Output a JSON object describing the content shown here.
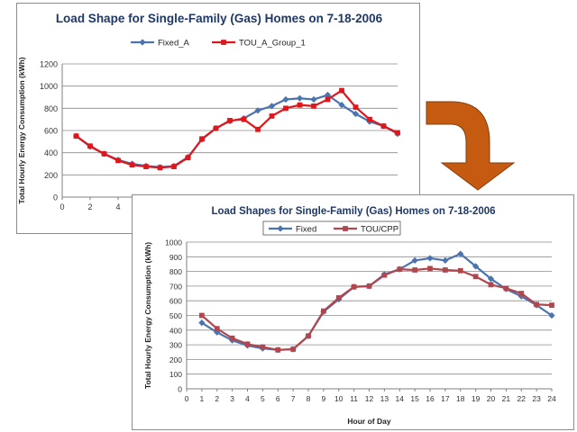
{
  "chart_data": [
    {
      "type": "line",
      "title": "Load Shape for Single-Family (Gas) Homes on 7-18-2006",
      "xlabel": "",
      "ylabel": "Total Hourly Energy Consumption (kWh)",
      "ylim": [
        0,
        1200
      ],
      "yticks": [
        0,
        200,
        400,
        600,
        800,
        1000,
        1200
      ],
      "xlim": [
        0,
        24
      ],
      "xticks": [
        "0",
        "2",
        "4"
      ],
      "grid": true,
      "legend_position": "top",
      "x": [
        1,
        2,
        3,
        4,
        5,
        6,
        7,
        8,
        9,
        10,
        11,
        12,
        13,
        14,
        15,
        16,
        17,
        18,
        19,
        20,
        21,
        22,
        23,
        24
      ],
      "series": [
        {
          "name": "Fixed_A",
          "color": "#4a73b0",
          "marker": "diamond",
          "values": [
            550,
            455,
            390,
            335,
            300,
            280,
            270,
            280,
            360,
            520,
            620,
            685,
            710,
            780,
            820,
            880,
            890,
            880,
            920,
            830,
            750,
            680,
            640,
            570
          ]
        },
        {
          "name": "TOU_A_Group_1",
          "color": "#e0161b",
          "marker": "square",
          "values": [
            550,
            460,
            390,
            330,
            290,
            275,
            265,
            275,
            355,
            525,
            620,
            690,
            700,
            610,
            730,
            800,
            830,
            820,
            880,
            960,
            810,
            700,
            640,
            580
          ]
        }
      ]
    },
    {
      "type": "line",
      "title": "Load Shapes for Single-Family (Gas) Homes on 7-18-2006",
      "xlabel": "Hour of Day",
      "ylabel": "Total Hourly Energy Consumption (kWh)",
      "ylim": [
        0,
        1000
      ],
      "yticks": [
        0,
        100,
        200,
        300,
        400,
        500,
        600,
        700,
        800,
        900,
        1000
      ],
      "xlim": [
        0,
        24
      ],
      "xticks": [
        "0",
        "1",
        "2",
        "3",
        "4",
        "5",
        "6",
        "7",
        "8",
        "9",
        "10",
        "11",
        "12",
        "13",
        "14",
        "15",
        "16",
        "17",
        "18",
        "19",
        "20",
        "21",
        "22",
        "23",
        "24"
      ],
      "grid": true,
      "legend_position": "top",
      "x": [
        1,
        2,
        3,
        4,
        5,
        6,
        7,
        8,
        9,
        10,
        11,
        12,
        13,
        14,
        15,
        16,
        17,
        18,
        19,
        20,
        21,
        22,
        23,
        24
      ],
      "series": [
        {
          "name": "Fixed",
          "color": "#4a73b0",
          "marker": "diamond",
          "values": [
            450,
            385,
            330,
            295,
            275,
            265,
            270,
            360,
            525,
            610,
            695,
            700,
            780,
            815,
            875,
            890,
            875,
            920,
            835,
            750,
            680,
            630,
            570,
            500
          ]
        },
        {
          "name": "TOU/CPP",
          "color": "#b0474e",
          "marker": "square",
          "values": [
            500,
            410,
            345,
            305,
            285,
            265,
            270,
            360,
            530,
            620,
            695,
            700,
            775,
            815,
            810,
            820,
            810,
            805,
            765,
            710,
            685,
            650,
            575,
            570
          ]
        }
      ]
    }
  ]
}
